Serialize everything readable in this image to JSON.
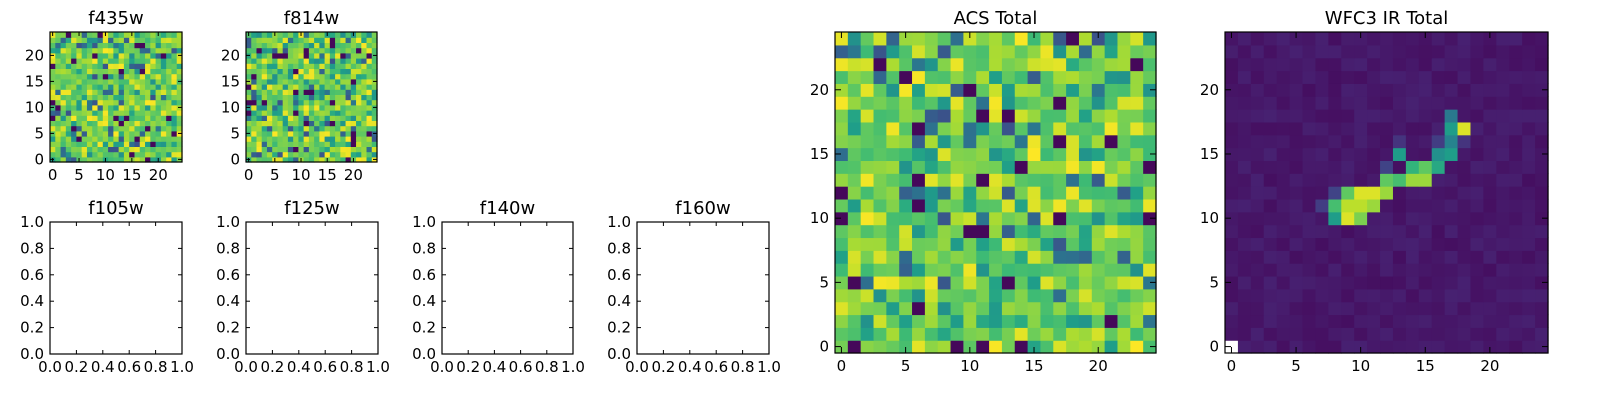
{
  "chart_data": [
    {
      "type": "heatmap",
      "title": "f435w",
      "colormap": "viridis",
      "grid": 25,
      "x_ticks": [
        "0",
        "5",
        "10",
        "15",
        "20"
      ],
      "y_ticks": [
        "0",
        "5",
        "10",
        "15",
        "20"
      ],
      "value_range": [
        0,
        1
      ],
      "pattern": "noise",
      "seed": 11
    },
    {
      "type": "heatmap",
      "title": "f814w",
      "colormap": "viridis",
      "grid": 25,
      "x_ticks": [
        "0",
        "5",
        "10",
        "15",
        "20"
      ],
      "y_ticks": [
        "0",
        "5",
        "10",
        "15",
        "20"
      ],
      "value_range": [
        0,
        1
      ],
      "pattern": "noise",
      "seed": 29
    },
    {
      "type": "empty",
      "title": "f105w",
      "x_ticks": [
        "0.0",
        "0.2",
        "0.4",
        "0.6",
        "0.8",
        "1.0"
      ],
      "y_ticks": [
        "0.0",
        "0.2",
        "0.4",
        "0.6",
        "0.8",
        "1.0"
      ]
    },
    {
      "type": "empty",
      "title": "f125w",
      "x_ticks": [
        "0.0",
        "0.2",
        "0.4",
        "0.6",
        "0.8",
        "1.0"
      ],
      "y_ticks": [
        "0.0",
        "0.2",
        "0.4",
        "0.6",
        "0.8",
        "1.0"
      ]
    },
    {
      "type": "empty",
      "title": "f140w",
      "x_ticks": [
        "0.0",
        "0.2",
        "0.4",
        "0.6",
        "0.8",
        "1.0"
      ],
      "y_ticks": [
        "0.0",
        "0.2",
        "0.4",
        "0.6",
        "0.8",
        "1.0"
      ]
    },
    {
      "type": "empty",
      "title": "f160w",
      "x_ticks": [
        "0.0",
        "0.2",
        "0.4",
        "0.6",
        "0.8",
        "1.0"
      ],
      "y_ticks": [
        "0.0",
        "0.2",
        "0.4",
        "0.6",
        "0.8",
        "1.0"
      ]
    },
    {
      "type": "heatmap",
      "title": "ACS Total",
      "colormap": "viridis",
      "grid": 25,
      "x_ticks": [
        "0",
        "5",
        "10",
        "15",
        "20"
      ],
      "y_ticks": [
        "0",
        "5",
        "10",
        "15",
        "20"
      ],
      "value_range": [
        0,
        1
      ],
      "pattern": "noise",
      "seed": 47
    },
    {
      "type": "heatmap",
      "title": "WFC3 IR Total",
      "colormap": "viridis",
      "grid": 25,
      "x_ticks": [
        "0",
        "5",
        "10",
        "15",
        "20"
      ],
      "y_ticks": [
        "0",
        "5",
        "10",
        "15",
        "20"
      ],
      "value_range": [
        0,
        1
      ],
      "pattern": "source",
      "background_level": 0.04,
      "min_pixel": [
        0,
        0
      ],
      "source_pixels": [
        [
          8,
          10,
          0.55
        ],
        [
          8,
          11,
          0.7
        ],
        [
          9,
          10,
          0.95
        ],
        [
          9,
          11,
          0.9
        ],
        [
          9,
          12,
          0.75
        ],
        [
          10,
          10,
          0.8
        ],
        [
          10,
          11,
          0.9
        ],
        [
          10,
          12,
          0.95
        ],
        [
          11,
          11,
          0.85
        ],
        [
          11,
          12,
          0.95
        ],
        [
          12,
          12,
          0.85
        ],
        [
          12,
          13,
          0.75
        ],
        [
          13,
          13,
          0.7
        ],
        [
          13,
          15,
          0.55
        ],
        [
          14,
          13,
          0.85
        ],
        [
          14,
          14,
          0.65
        ],
        [
          15,
          13,
          0.85
        ],
        [
          15,
          14,
          0.75
        ],
        [
          16,
          14,
          0.6
        ],
        [
          16,
          15,
          0.5
        ],
        [
          17,
          15,
          0.55
        ],
        [
          17,
          16,
          0.45
        ],
        [
          17,
          17,
          0.55
        ],
        [
          17,
          18,
          0.4
        ],
        [
          18,
          17,
          0.95
        ],
        [
          7,
          11,
          0.18
        ],
        [
          8,
          12,
          0.2
        ],
        [
          12,
          14,
          0.2
        ],
        [
          13,
          16,
          0.15
        ],
        [
          16,
          16,
          0.18
        ],
        [
          18,
          16,
          0.15
        ]
      ]
    }
  ]
}
